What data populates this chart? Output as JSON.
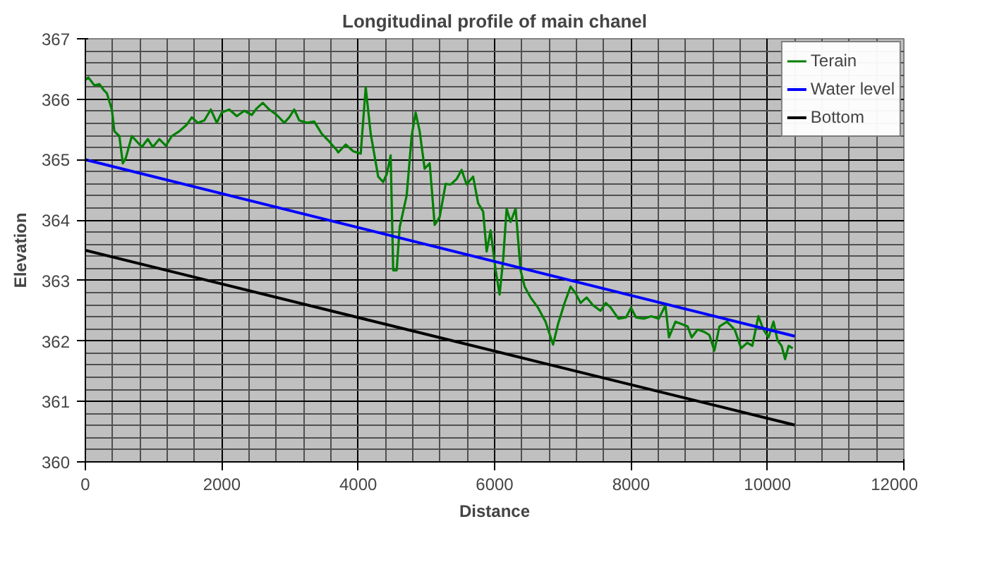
{
  "chart_data": {
    "type": "line",
    "title": "Longitudinal profile of main chanel",
    "xlabel": "Distance",
    "ylabel": "Elevation",
    "xlim": [
      0,
      12000
    ],
    "xticks": [
      0,
      2000,
      4000,
      6000,
      8000,
      10000,
      12000
    ],
    "ylim": [
      360,
      367
    ],
    "yticks": [
      360,
      361,
      362,
      363,
      364,
      365,
      366,
      367
    ],
    "grid": true,
    "legend": "top right",
    "series": [
      {
        "name": "Terain",
        "color": "#008000",
        "x": [
          0,
          44,
          132,
          205,
          278,
          315,
          388,
          425,
          498,
          549,
          593,
          681,
          755,
          828,
          916,
          989,
          1084,
          1180,
          1267,
          1377,
          1487,
          1560,
          1648,
          1744,
          1839,
          1927,
          2000,
          2110,
          2220,
          2330,
          2440,
          2513,
          2601,
          2696,
          2806,
          2916,
          2989,
          3062,
          3136,
          3246,
          3355,
          3465,
          3575,
          3685,
          3707,
          3817,
          3927,
          4037,
          4110,
          4183,
          4293,
          4366,
          4418,
          4476,
          4513,
          4564,
          4608,
          4711,
          4784,
          4842,
          4901,
          4974,
          5048,
          5121,
          5194,
          5282,
          5355,
          5443,
          5516,
          5590,
          5685,
          5758,
          5832,
          5883,
          5941,
          6015,
          6073,
          6125,
          6176,
          6234,
          6308,
          6381,
          6440,
          6527,
          6637,
          6747,
          6857,
          6930,
          7026,
          7114,
          7187,
          7260,
          7348,
          7443,
          7553,
          7630,
          7704,
          7815,
          7926,
          8000,
          8074,
          8185,
          8296,
          8407,
          8504,
          8556,
          8652,
          8741,
          8830,
          8889,
          8978,
          9074,
          9148,
          9222,
          9296,
          9407,
          9519,
          9615,
          9704,
          9778,
          9867,
          9941,
          10015,
          10089,
          10148,
          10207,
          10259,
          10311,
          10370
        ],
        "values": [
          366.32,
          366.36,
          366.23,
          366.25,
          366.14,
          366.1,
          365.83,
          365.47,
          365.39,
          364.94,
          365.03,
          365.39,
          365.3,
          365.21,
          365.34,
          365.21,
          365.34,
          365.23,
          365.39,
          365.47,
          365.58,
          365.7,
          365.61,
          365.65,
          365.83,
          365.61,
          365.78,
          365.83,
          365.72,
          365.81,
          365.74,
          365.85,
          365.94,
          365.83,
          365.74,
          365.61,
          365.7,
          365.83,
          365.65,
          365.61,
          365.63,
          365.43,
          365.3,
          365.16,
          365.12,
          365.25,
          365.14,
          365.1,
          366.2,
          365.43,
          364.72,
          364.63,
          364.76,
          365.07,
          363.17,
          363.17,
          363.88,
          364.41,
          365.39,
          365.78,
          365.47,
          364.85,
          364.94,
          363.92,
          364.05,
          364.6,
          364.59,
          364.68,
          364.83,
          364.59,
          364.72,
          364.28,
          364.14,
          363.48,
          363.83,
          363.17,
          362.77,
          363.34,
          364.19,
          363.97,
          364.19,
          363.17,
          362.9,
          362.72,
          362.55,
          362.32,
          361.94,
          362.28,
          362.63,
          362.9,
          362.79,
          362.63,
          362.72,
          362.59,
          362.5,
          362.63,
          362.55,
          362.37,
          362.39,
          362.55,
          362.39,
          362.37,
          362.41,
          362.37,
          362.59,
          362.06,
          362.32,
          362.28,
          362.24,
          362.06,
          362.19,
          362.15,
          362.1,
          361.84,
          362.24,
          362.32,
          362.19,
          361.88,
          361.97,
          361.92,
          362.41,
          362.19,
          362.06,
          362.32,
          362.01,
          361.92,
          361.7,
          361.92,
          361.88
        ]
      },
      {
        "name": "Water level",
        "color": "#0000ff",
        "x": [
          0,
          10400
        ],
        "values": [
          365.0,
          362.08
        ]
      },
      {
        "name": "Bottom",
        "color": "#000000",
        "x": [
          0,
          10400
        ],
        "values": [
          363.5,
          360.61
        ]
      }
    ]
  }
}
